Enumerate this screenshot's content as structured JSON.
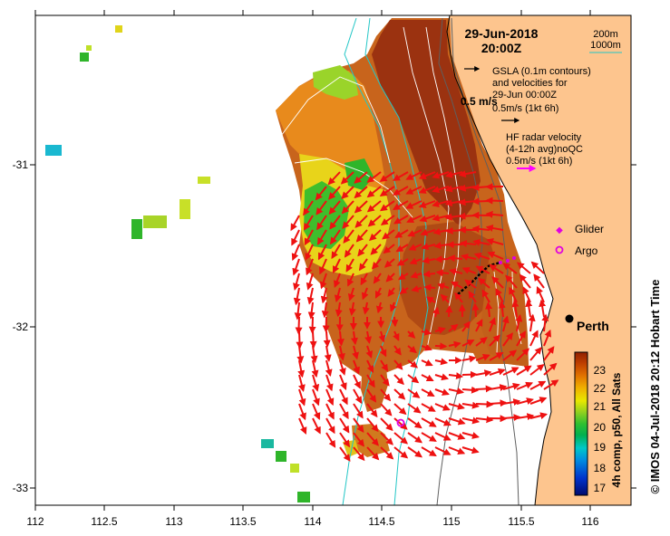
{
  "header": {
    "date": "29-Jun-2018",
    "time": "20:00Z"
  },
  "depth_legend": {
    "contour_200": "200m",
    "contour_1000": "1000m",
    "color_200": "#5f5f5f",
    "color_1000": "#22c6c6"
  },
  "gsla_legend": {
    "line1": "GSLA (0.1m contours)",
    "line2": "and velocities for",
    "line3": "29-Jun 00:00Z",
    "line4": "0.5m/s (1kt 6h)",
    "scale_label": "0.5 m/s"
  },
  "hf_legend": {
    "line1": "HF radar velocity",
    "line2": "(4-12h avg)noQC",
    "line3": "0.5m/s (1kt 6h)",
    "arrow_color": "#ff00ff"
  },
  "markers": {
    "glider_label": "Glider",
    "argo_label": "Argo",
    "city_label": "Perth",
    "glider_color": "#e000e0",
    "argo_color": "#e000e0"
  },
  "axes": {
    "x_ticks": [
      "112",
      "112.5",
      "113",
      "113.5",
      "114",
      "114.5",
      "115",
      "115.5",
      "116"
    ],
    "y_ticks": [
      "-31",
      "-32",
      "-33"
    ]
  },
  "colorbar": {
    "title": "4h comp, p50, All Sats",
    "ticks": [
      "23",
      "22",
      "21",
      "20",
      "19",
      "18",
      "17"
    ],
    "colors": [
      "#000a6e",
      "#0033cc",
      "#0090e0",
      "#00c8c8",
      "#00b050",
      "#30c030",
      "#90d020",
      "#e8e800",
      "#f0b000",
      "#e07000",
      "#c04000",
      "#902000"
    ]
  },
  "credit": {
    "text": "© IMOS 04-Jul-2018 20:12 Hobart Time"
  }
}
